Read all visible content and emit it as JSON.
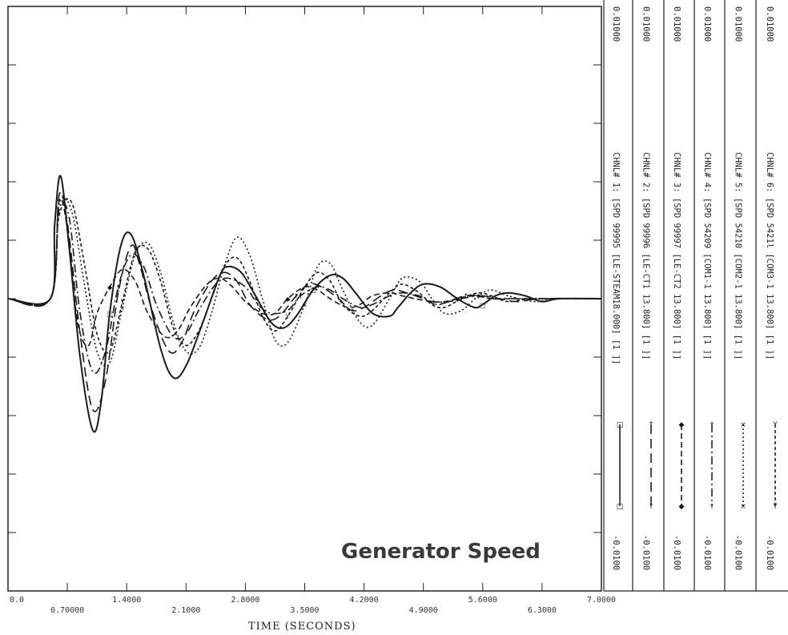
{
  "chart_data": {
    "type": "line",
    "title": "Generator Speed",
    "xlabel": "TIME  (SECONDS)",
    "xlim": [
      0,
      7
    ],
    "x_ticks": [
      "0.0",
      "0.70000",
      "1.4000",
      "2.1000",
      "2.8000",
      "3.5000",
      "4.2000",
      "4.9000",
      "5.6000",
      "6.3000",
      "7.0000"
    ],
    "ylim": [
      -0.01,
      0.01
    ],
    "y_ticks_shown": false,
    "series": [
      {
        "name": "CHNL# 1: [SPD  99995 [LE-STEAM18.000] [1 ]]",
        "channel": "CHNL# 1:",
        "label": "[SPD  99995 [LE-STEAM18.000] [1 ]]",
        "max_label": "0.01000",
        "min_label": "-0.0100",
        "marker": "□",
        "style": "solid",
        "x": [
          0,
          0.5,
          0.55,
          0.62,
          0.72,
          0.85,
          1.0,
          1.1,
          1.2,
          1.33,
          1.45,
          1.6,
          1.8,
          1.95,
          2.1,
          2.3,
          2.5,
          2.6,
          2.75,
          2.9,
          3.1,
          3.25,
          3.4,
          3.6,
          3.8,
          3.95,
          4.1,
          4.3,
          4.5,
          4.6,
          4.75,
          4.9,
          5.1,
          5.3,
          5.5,
          5.6,
          5.75,
          5.9,
          6.1,
          6.3,
          6.5,
          7.0
        ],
        "y": [
          0,
          0,
          0.0025,
          0.0042,
          0.0018,
          -0.002,
          -0.0045,
          -0.0035,
          -0.0005,
          0.0018,
          0.0022,
          0.0008,
          -0.0017,
          -0.0027,
          -0.0023,
          -0.0008,
          0.0008,
          0.0011,
          0.0009,
          0.0002,
          -0.0008,
          -0.001,
          -0.0006,
          0.0003,
          0.0008,
          0.0007,
          0.0002,
          -0.0005,
          -0.0006,
          -0.0003,
          0.0002,
          0.0005,
          0.0004,
          0.0,
          -0.0003,
          -0.0002,
          0.0001,
          0.0002,
          0.0001,
          -0.0001,
          0.0,
          0.0
        ]
      },
      {
        "name": "CHNL# 2: [SPD  99996 [LE-CT1   13.800] [1 ]]",
        "channel": "CHNL# 2:",
        "label": "[SPD  99996 [LE-CT1   13.800] [1 ]]",
        "max_label": "0.01000",
        "min_label": "-0.0100",
        "marker": "↑",
        "style": "longdash",
        "x": [
          0,
          0.5,
          0.6,
          0.7,
          0.85,
          1.0,
          1.15,
          1.3,
          1.45,
          1.55,
          1.7,
          1.9,
          2.05,
          2.2,
          2.4,
          2.55,
          2.7,
          2.85,
          3.05,
          3.2,
          3.4,
          3.55,
          3.7,
          3.9,
          4.05,
          4.2,
          4.4,
          4.55,
          4.7,
          4.9,
          5.05,
          5.2,
          5.4,
          5.6,
          5.8,
          6.0,
          6.3,
          7.0
        ],
        "y": [
          0,
          0,
          0.0035,
          0.0026,
          -0.0012,
          -0.0038,
          -0.0028,
          0.0002,
          0.0018,
          0.0012,
          -0.0004,
          -0.0018,
          -0.0015,
          -0.0004,
          0.0006,
          0.0009,
          0.0006,
          -0.0002,
          -0.0007,
          -0.0006,
          0.0001,
          0.0005,
          0.0004,
          0.0,
          -0.0004,
          -0.0003,
          0.0001,
          0.0003,
          0.0002,
          0.0,
          -0.0002,
          -0.0001,
          0.0001,
          0.0001,
          0.0,
          -0.0001,
          0.0,
          0.0
        ]
      },
      {
        "name": "CHNL# 3: [SPD  99997 [LE-CT2   13.800] [1 ]]",
        "channel": "CHNL# 3:",
        "label": "[SPD  99997 [LE-CT2   13.800] [1 ]]",
        "max_label": "0.01000",
        "min_label": "-0.0100",
        "marker": "◆",
        "style": "dashed",
        "x": [
          0,
          0.5,
          0.6,
          0.7,
          0.82,
          0.95,
          1.05,
          1.2,
          1.35,
          1.5,
          1.65,
          1.85,
          2.0,
          2.15,
          2.35,
          2.5,
          2.65,
          2.8,
          3.0,
          3.15,
          3.3,
          3.5,
          3.65,
          3.8,
          4.0,
          4.15,
          4.3,
          4.5,
          4.65,
          4.8,
          5.0,
          5.15,
          5.3,
          5.5,
          5.7,
          5.9,
          6.2,
          7.0
        ],
        "y": [
          0,
          0,
          0.0033,
          0.0024,
          -0.0008,
          -0.0016,
          -0.0005,
          0.0004,
          0.001,
          0.0006,
          -0.0005,
          -0.0013,
          -0.0011,
          -0.0003,
          0.0005,
          0.0007,
          0.0004,
          -0.0001,
          -0.0005,
          -0.0005,
          0.0,
          0.0004,
          0.0003,
          0.0,
          -0.0003,
          -0.0002,
          0.0001,
          0.0002,
          0.0001,
          0.0,
          -0.0001,
          -0.0001,
          0.0,
          0.0001,
          0.0,
          0.0,
          0.0,
          0.0
        ]
      },
      {
        "name": "CHNL# 4: [SPD  54209 [COM1-1   13.800] [1 ]]",
        "channel": "CHNL# 4:",
        "label": "[SPD  54209 [COM1-1   13.800] [1 ]]",
        "max_label": "0.01000",
        "min_label": "-0.0100",
        "marker": "†",
        "style": "dashdot",
        "x": [
          0,
          0.5,
          0.6,
          0.72,
          0.85,
          1.0,
          1.15,
          1.3,
          1.45,
          1.6,
          1.75,
          1.95,
          2.1,
          2.25,
          2.45,
          2.6,
          2.8,
          2.95,
          3.1,
          3.3,
          3.45,
          3.65,
          3.8,
          3.95,
          4.15,
          4.3,
          4.5,
          4.65,
          4.85,
          5.0,
          5.2,
          5.35,
          5.55,
          5.7,
          5.9,
          6.1,
          6.4,
          7.0
        ],
        "y": [
          0,
          0,
          0.003,
          0.0028,
          -0.0005,
          -0.0025,
          -0.0018,
          0.0004,
          0.0015,
          0.0011,
          -0.0002,
          -0.0013,
          -0.0012,
          -0.0004,
          0.0005,
          0.0007,
          0.0004,
          -0.0002,
          -0.0005,
          -0.0004,
          0.0001,
          0.0004,
          0.0003,
          0.0,
          -0.0003,
          -0.0002,
          0.0001,
          0.0002,
          0.0001,
          -0.0001,
          -0.0001,
          0.0,
          0.0001,
          0.0,
          0.0,
          0.0,
          0.0,
          0.0
        ]
      },
      {
        "name": "CHNL# 5: [SPD  54210 [COM2-1   13.800] [1 ]]",
        "channel": "CHNL# 5:",
        "label": "[SPD  54210 [COM2-1   13.800] [1 ]]",
        "max_label": "0.01000",
        "min_label": "-0.0100",
        "marker": "×",
        "style": "dotted",
        "x": [
          0,
          0.5,
          0.6,
          0.75,
          0.9,
          1.05,
          1.2,
          1.35,
          1.5,
          1.65,
          1.8,
          1.95,
          2.1,
          2.25,
          2.4,
          2.55,
          2.7,
          2.85,
          3.0,
          3.15,
          3.3,
          3.5,
          3.65,
          3.8,
          3.95,
          4.15,
          4.3,
          4.5,
          4.65,
          4.85,
          5.0,
          5.15,
          5.35,
          5.55,
          5.7,
          5.9,
          6.2,
          6.5,
          7.0
        ],
        "y": [
          0,
          0,
          0.0032,
          0.003,
          0.0005,
          -0.0018,
          -0.0022,
          -0.0003,
          0.0015,
          0.0019,
          0.0009,
          -0.0008,
          -0.0018,
          -0.0017,
          -0.0005,
          0.0011,
          0.0021,
          0.0015,
          0.0,
          -0.0014,
          -0.0015,
          -0.0002,
          0.0011,
          0.0012,
          0.0003,
          -0.0008,
          -0.0009,
          0.0,
          0.0007,
          0.0006,
          0.0,
          -0.0005,
          -0.0004,
          0.0001,
          0.0003,
          0.0001,
          -0.0001,
          0.0,
          0.0
        ]
      },
      {
        "name": "CHNL# 6: [SPD  5421l [COM3-1   13.800] [1 ]]",
        "channel": "CHNL# 6:",
        "label": "[SPD  5421l [COM3-1   13.800] [1 ]]",
        "max_label": "0.01000",
        "min_label": "-0.0100",
        "marker": "Y",
        "style": "shortdash",
        "x": [
          0,
          0.5,
          0.6,
          0.75,
          0.9,
          1.05,
          1.2,
          1.35,
          1.5,
          1.65,
          1.8,
          1.95,
          2.1,
          2.25,
          2.4,
          2.55,
          2.7,
          2.85,
          3.0,
          3.15,
          3.3,
          3.5,
          3.65,
          3.8,
          3.95,
          4.15,
          4.3,
          4.5,
          4.65,
          4.85,
          5.0,
          5.15,
          5.35,
          5.55,
          5.7,
          5.9,
          6.2,
          7.0
        ],
        "y": [
          0,
          0,
          0.0028,
          0.0033,
          0.0012,
          -0.0012,
          -0.0018,
          -0.0001,
          0.0016,
          0.0017,
          0.0006,
          -0.001,
          -0.0016,
          -0.0011,
          0.0,
          0.0011,
          0.0014,
          0.0006,
          -0.0006,
          -0.0011,
          -0.0006,
          0.0004,
          0.0009,
          0.0006,
          -0.0002,
          -0.0006,
          -0.0004,
          0.0002,
          0.0005,
          0.0002,
          -0.0002,
          -0.0003,
          0.0,
          0.0002,
          0.0001,
          -0.0001,
          0.0,
          0.0
        ]
      }
    ]
  }
}
